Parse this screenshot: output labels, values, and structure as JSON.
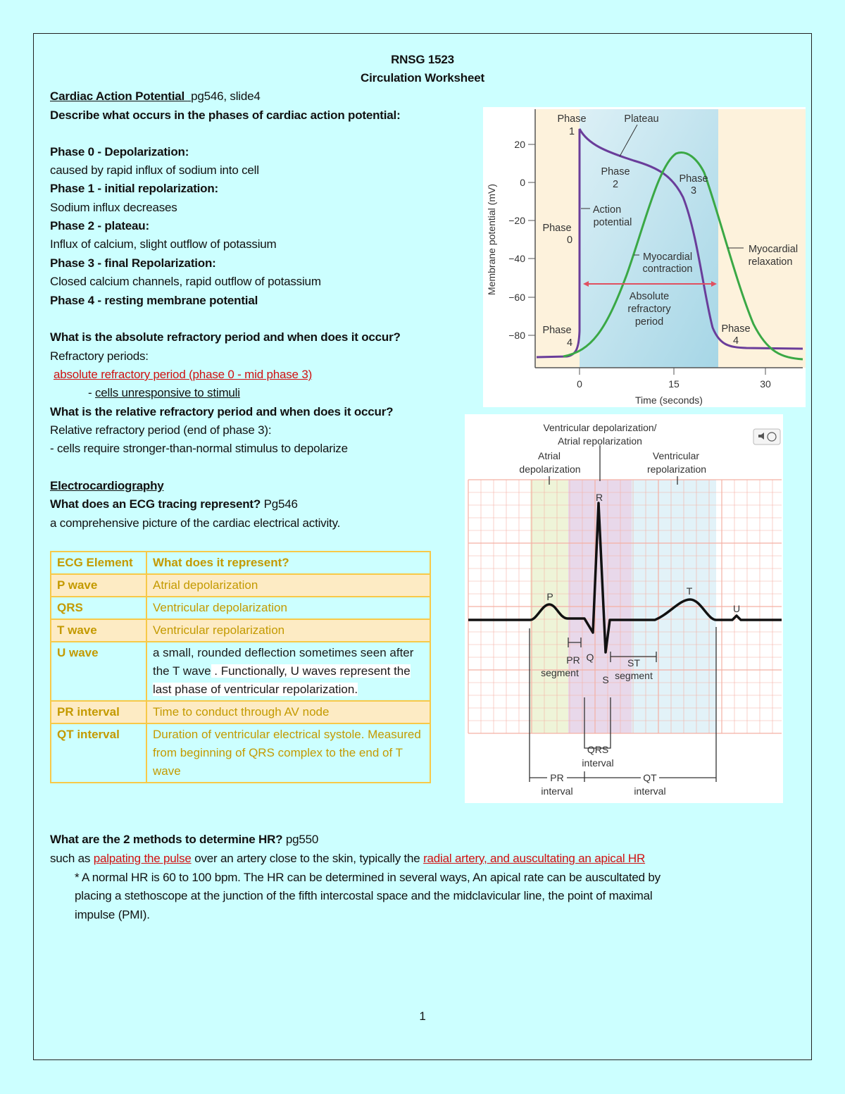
{
  "header": {
    "course": "RNSG 1523",
    "title": "Circulation Worksheet"
  },
  "section1": {
    "heading": "Cardiac Action Potential ",
    "ref": "pg546,  slide4",
    "question": "Describe what occurs in the phases of cardiac action potential:",
    "phases": [
      {
        "label": "Phase 0 - Depolarization:",
        "text": "caused by rapid influx of sodium into cell"
      },
      {
        "label": "Phase 1 - initial repolarization:",
        "text": "Sodium influx decreases"
      },
      {
        "label": "Phase 2 - plateau:",
        "text": "Influx of calcium, slight outflow of potassium"
      },
      {
        "label": "Phase 3 - final Repolarization:",
        "text": "Closed calcium channels, rapid outflow of potassium"
      },
      {
        "label": "Phase 4 - resting membrane potential",
        "text": ""
      }
    ],
    "q_absolute": "What is the absolute refractory period and when does it occur?",
    "refractory_label": "Refractory periods:",
    "absolute_answer": "absolute refractory period (phase 0  - mid phase 3)",
    "absolute_detail_prefix": "- ",
    "absolute_detail": "cells  unresponsive to stimuli",
    "q_relative": "What is the relative refractory period and when does it occur?",
    "relative_answer": "Relative refractory period (end of phase 3):",
    "relative_detail": "- cells require stronger-than-normal stimulus to depolarize"
  },
  "section2": {
    "heading": "Electrocardiography",
    "question": "What does an ECG tracing represent?",
    "ref": " Pg546",
    "answer": "a comprehensive picture of the cardiac electrical activity."
  },
  "table": {
    "headers": [
      "ECG Element",
      "What does it represent?"
    ],
    "rows": [
      {
        "element": "P wave",
        "meaning": " Atrial depolarization"
      },
      {
        "element": "QRS",
        "meaning": " Ventricular depolarization"
      },
      {
        "element": "T wave",
        "meaning": " Ventricular repolarization"
      },
      {
        "element": "U wave",
        "meaning_a": " a small, rounded deflection sometimes seen after the T wave",
        "meaning_b": " . Functionally, U waves represent the last phase of ventricular repolarization."
      },
      {
        "element": "PR interval",
        "meaning": " Time to conduct through AV node"
      },
      {
        "element": "QT interval",
        "meaning": " Duration of ventricular electrical systole. Measured from  beginning of QRS complex to the end of T wave"
      }
    ]
  },
  "section3": {
    "question": "What are the 2 methods to determine HR?",
    "ref": " pg550",
    "a1": "such as ",
    "a_link1": "palpating the pulse",
    "a2": " over an artery close to the skin, typically the ",
    "a_link2": "radial artery, and auscultating an apical HR",
    "note1": "* A normal HR is 60 to 100 bpm. The HR can be determined in several ways, An apical rate can be auscultated by",
    "note2": "placing a stethoscope at the junction of the fifth intercostal space and the midclavicular line, the point of maximal",
    "note3": "impulse (PMI)."
  },
  "ap_figure": {
    "ylabel": "Membrane potential (mV)",
    "xlabel": "Time (seconds)",
    "yticks": [
      "20",
      "0",
      "−20",
      "−40",
      "−60",
      "−80"
    ],
    "xticks": [
      "0",
      "15",
      "30"
    ],
    "labels": {
      "phase1a": "Phase",
      "phase1b": "1",
      "plateau": "Plateau",
      "phase2a": "Phase",
      "phase2b": "2",
      "phase3a": "Phase",
      "phase3b": "3",
      "phase0a": "Phase",
      "phase0b": "0",
      "phase4a": "Phase",
      "phase4b": "4",
      "phase4ra": "Phase",
      "phase4rb": "4",
      "ap1": "Action",
      "ap2": "potential",
      "mc1": "Myocardial",
      "mc2": "contraction",
      "mr1": "Myocardial",
      "mr2": "relaxation",
      "arp1": "Absolute",
      "arp2": "refractory",
      "arp3": "period"
    },
    "colors": {
      "action_potential": "#6a3d9a",
      "contraction": "#3aa845",
      "arrow": "#e05060"
    }
  },
  "ecg_figure": {
    "labels": {
      "vd1": "Ventricular depolarization/",
      "vd2": "Atrial repolarization",
      "ad1": "Atrial",
      "ad2": "depolarization",
      "vr1": "Ventricular",
      "vr2": "repolarization",
      "R": "R",
      "P": "P",
      "T": "T",
      "U": "U",
      "Q": "Q",
      "S": "S",
      "prs1": "PR",
      "prs2": "segment",
      "st1": "ST",
      "st2": "segment",
      "qrs1": "QRS",
      "qrs2": "interval",
      "pri1": "PR",
      "pri2": "interval",
      "qti1": "QT",
      "qti2": "interval"
    },
    "icon": "audio-speaker-icon"
  },
  "footer": {
    "page": "1"
  }
}
